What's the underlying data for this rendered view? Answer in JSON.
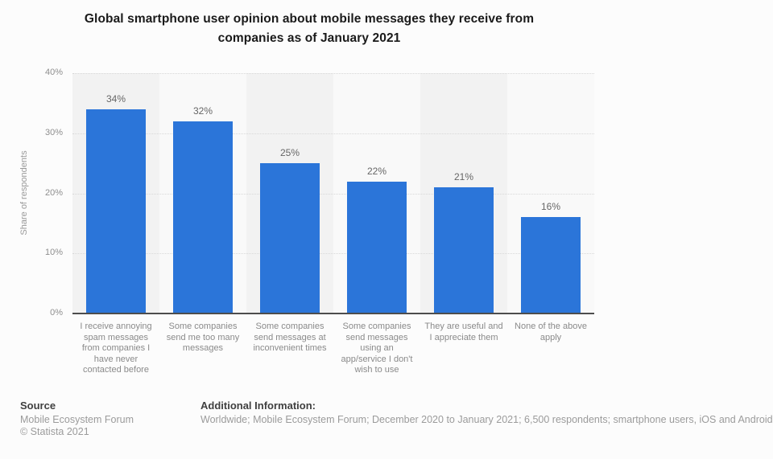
{
  "title": {
    "lines": [
      "Global smartphone user opinion about mobile messages they receive from",
      "companies as of January 2021"
    ]
  },
  "chart_data": {
    "type": "bar",
    "title": "Global smartphone user opinion about mobile messages they receive from companies as of January 2021",
    "categories": [
      "I receive annoying spam messages from companies I have never contacted before",
      "Some companies send me too many messages",
      "Some companies send messages at inconvenient times",
      "Some companies send messages using an app/service I don't wish to use",
      "They are useful and I appreciate them",
      "None of the above apply"
    ],
    "values": [
      34,
      32,
      25,
      22,
      21,
      16
    ],
    "value_labels": [
      "34%",
      "32%",
      "25%",
      "22%",
      "21%",
      "16%"
    ],
    "xlabel": "",
    "ylabel": "Share of respondents",
    "ylim": [
      0,
      40
    ],
    "y_ticks": [
      0,
      10,
      20,
      30,
      40
    ],
    "y_tick_labels": [
      "0%",
      "10%",
      "20%",
      "30%",
      "40%"
    ],
    "grid": "horizontal-dotted",
    "legend": "none",
    "bar_color": "#2b75d9"
  },
  "footer": {
    "source_label": "Source",
    "source_value": "Mobile Ecosystem Forum",
    "copyright": "© Statista 2021",
    "additional_label": "Additional Information:",
    "additional_value": "Worldwide; Mobile Ecosystem Forum; December 2020 to January 2021; 6,500 respondents; smartphone users, iOS and Android"
  },
  "colors": {
    "bar": "#2b75d9",
    "band_odd": "#f2f2f2",
    "band_even": "#f9f9f9",
    "background": "#fcfcfc",
    "baseline": "#4d4d4d",
    "gridline": "#d8d8d8"
  }
}
